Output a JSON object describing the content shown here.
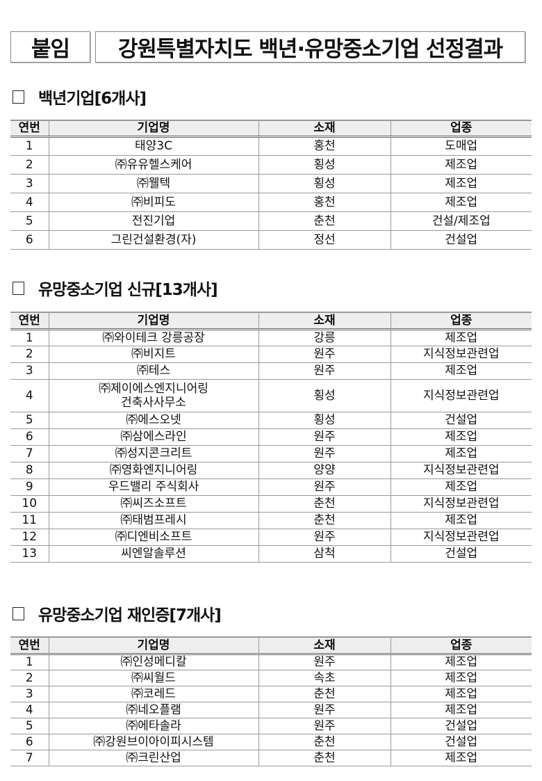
{
  "header": {
    "tag": "붙임",
    "title": "강원특별자치도 백년·유망중소기업 선정결과"
  },
  "columns": [
    "연번",
    "기업명",
    "소재",
    "업종"
  ],
  "sections": [
    {
      "title": "백년기업[6개사]",
      "rows": [
        [
          "1",
          "태양3C",
          "홍천",
          "도매업"
        ],
        [
          "2",
          "㈜유유헬스케어",
          "횡성",
          "제조업"
        ],
        [
          "3",
          "㈜웰텍",
          "횡성",
          "제조업"
        ],
        [
          "4",
          "㈜비피도",
          "홍천",
          "제조업"
        ],
        [
          "5",
          "전진기업",
          "춘천",
          "건설/제조업"
        ],
        [
          "6",
          "그린건설환경(자)",
          "정선",
          "건설업"
        ]
      ]
    },
    {
      "title": "유망중소기업 신규[13개사]",
      "rows": [
        [
          "1",
          "㈜와이테크 강릉공장",
          "강릉",
          "제조업"
        ],
        [
          "2",
          "㈜비지트",
          "원주",
          "지식정보관련업"
        ],
        [
          "3",
          "㈜테스",
          "원주",
          "제조업"
        ],
        [
          "4",
          "㈜제이에스엔지니어링\n건축사사무소",
          "횡성",
          "지식정보관련업"
        ],
        [
          "5",
          "㈜에스오넷",
          "횡성",
          "건설업"
        ],
        [
          "6",
          "㈜삼에스라인",
          "원주",
          "제조업"
        ],
        [
          "7",
          "㈜성지콘크리트",
          "원주",
          "제조업"
        ],
        [
          "8",
          "㈜영화엔지니어링",
          "양양",
          "지식정보관련업"
        ],
        [
          "9",
          "우드밸리 주식회사",
          "원주",
          "제조업"
        ],
        [
          "10",
          "㈜씨즈소프트",
          "춘천",
          "지식정보관련업"
        ],
        [
          "11",
          "㈜태범프레시",
          "춘천",
          "제조업"
        ],
        [
          "12",
          "㈜디엔비소프트",
          "원주",
          "지식정보관련업"
        ],
        [
          "13",
          "씨엔알솔루션",
          "삼척",
          "건설업"
        ]
      ]
    },
    {
      "title": "유망중소기업 재인증[7개사]",
      "rows": [
        [
          "1",
          "㈜인성메디칼",
          "원주",
          "제조업"
        ],
        [
          "2",
          "㈜씨월드",
          "속초",
          "제조업"
        ],
        [
          "3",
          "㈜코레드",
          "춘천",
          "제조업"
        ],
        [
          "4",
          "㈜네오플램",
          "원주",
          "제조업"
        ],
        [
          "5",
          "㈜에타솔라",
          "원주",
          "건설업"
        ],
        [
          "6",
          "㈜강원브이아이피시스템",
          "춘천",
          "건설업"
        ],
        [
          "7",
          "㈜크린산업",
          "춘천",
          "제조업"
        ]
      ]
    }
  ]
}
